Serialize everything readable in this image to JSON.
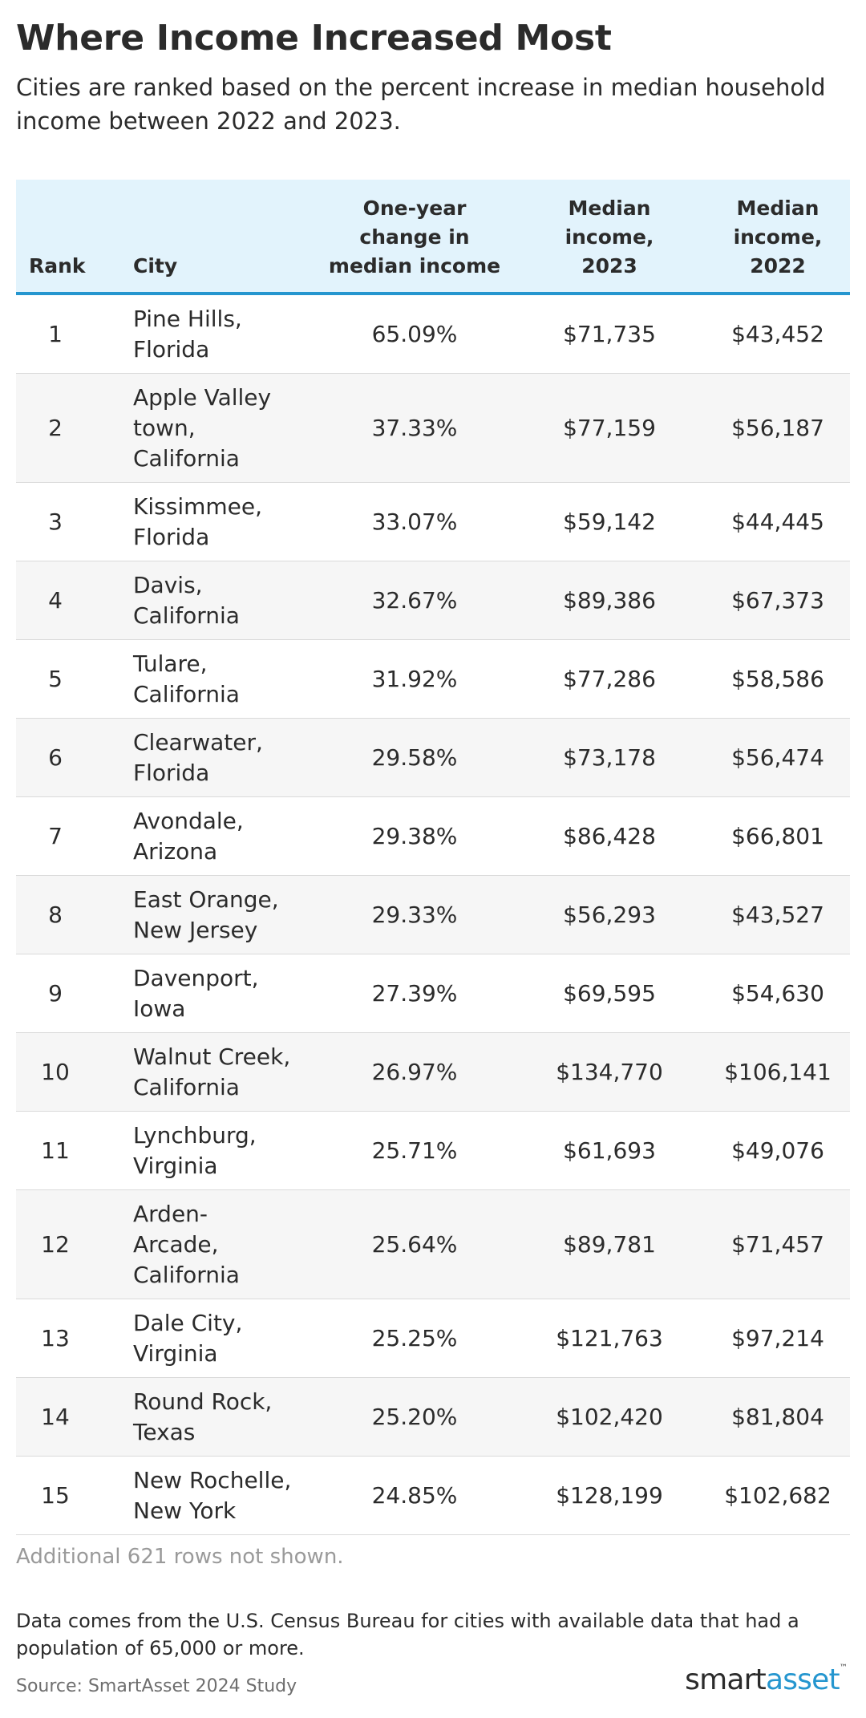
{
  "title": "Where Income Increased Most",
  "subtitle": "Cities are ranked based on the percent increase in median household income between 2022 and 2023.",
  "table": {
    "headers": {
      "rank": "Rank",
      "city": "City",
      "change_l1": "One-year",
      "change_l2": "change in",
      "change_l3": "median income",
      "inc23_l1": "Median",
      "inc23_l2": "income,",
      "inc23_l3": "2023",
      "inc22_l1": "Median",
      "inc22_l2": "income,",
      "inc22_l3": "2022"
    },
    "rows": [
      {
        "rank": "1",
        "city": [
          "Pine Hills,",
          "Florida"
        ],
        "change": "65.09%",
        "inc2023": "$71,735",
        "inc2022": "$43,452"
      },
      {
        "rank": "2",
        "city": [
          "Apple Valley",
          "town,",
          "California"
        ],
        "change": "37.33%",
        "inc2023": "$77,159",
        "inc2022": "$56,187"
      },
      {
        "rank": "3",
        "city": [
          "Kissimmee,",
          "Florida"
        ],
        "change": "33.07%",
        "inc2023": "$59,142",
        "inc2022": "$44,445"
      },
      {
        "rank": "4",
        "city": [
          "Davis,",
          "California"
        ],
        "change": "32.67%",
        "inc2023": "$89,386",
        "inc2022": "$67,373"
      },
      {
        "rank": "5",
        "city": [
          "Tulare,",
          "California"
        ],
        "change": "31.92%",
        "inc2023": "$77,286",
        "inc2022": "$58,586"
      },
      {
        "rank": "6",
        "city": [
          "Clearwater,",
          "Florida"
        ],
        "change": "29.58%",
        "inc2023": "$73,178",
        "inc2022": "$56,474"
      },
      {
        "rank": "7",
        "city": [
          "Avondale,",
          "Arizona"
        ],
        "change": "29.38%",
        "inc2023": "$86,428",
        "inc2022": "$66,801"
      },
      {
        "rank": "8",
        "city": [
          "East Orange,",
          "New Jersey"
        ],
        "change": "29.33%",
        "inc2023": "$56,293",
        "inc2022": "$43,527"
      },
      {
        "rank": "9",
        "city": [
          "Davenport,",
          "Iowa"
        ],
        "change": "27.39%",
        "inc2023": "$69,595",
        "inc2022": "$54,630"
      },
      {
        "rank": "10",
        "city": [
          "Walnut Creek,",
          "California"
        ],
        "change": "26.97%",
        "inc2023": "$134,770",
        "inc2022": "$106,141"
      },
      {
        "rank": "11",
        "city": [
          "Lynchburg,",
          "Virginia"
        ],
        "change": "25.71%",
        "inc2023": "$61,693",
        "inc2022": "$49,076"
      },
      {
        "rank": "12",
        "city": [
          "Arden-",
          "Arcade,",
          "California"
        ],
        "change": "25.64%",
        "inc2023": "$89,781",
        "inc2022": "$71,457"
      },
      {
        "rank": "13",
        "city": [
          "Dale City,",
          "Virginia"
        ],
        "change": "25.25%",
        "inc2023": "$121,763",
        "inc2022": "$97,214"
      },
      {
        "rank": "14",
        "city": [
          "Round Rock,",
          "Texas"
        ],
        "change": "25.20%",
        "inc2023": "$102,420",
        "inc2022": "$81,804"
      },
      {
        "rank": "15",
        "city": [
          "New Rochelle,",
          "New York"
        ],
        "change": "24.85%",
        "inc2023": "$128,199",
        "inc2022": "$102,682"
      }
    ]
  },
  "more_rows": "Additional 621 rows not shown.",
  "note": "Data comes from the U.S. Census Bureau for cities with available data that had a population of 65,000 or more.",
  "source": "Source: SmartAsset 2024 Study",
  "logo": {
    "part1": "smart",
    "part2": "asset",
    "tm": "™"
  },
  "colors": {
    "header_bg": "#e2f3fc",
    "header_rule": "#2596cf",
    "alt_row": "#f6f6f6"
  }
}
